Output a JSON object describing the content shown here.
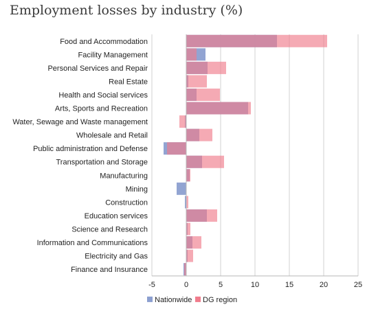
{
  "chart_data": {
    "type": "bar",
    "orientation": "horizontal",
    "title": "Employment losses by industry (%)",
    "xlim": [
      -5,
      25
    ],
    "x_ticks": [
      -5,
      0,
      5,
      10,
      15,
      20,
      25
    ],
    "grid": true,
    "legend_position": "bottom",
    "categories": [
      "Food and Accommodation",
      "Facility Management",
      "Personal Services and Repair",
      "Real Estate",
      "Health and Social services",
      "Arts, Sports and Recreation",
      "Water, Sewage and Waste management",
      "Wholesale and Retail",
      "Public administration and Defense",
      "Transportation and Storage",
      "Manufacturing",
      "Mining",
      "Construction",
      "Education services",
      "Science and Research",
      "Information and Communications",
      "Electricity and Gas",
      "Finance and Insurance"
    ],
    "series": [
      {
        "name": "Nationwide",
        "color": "#8c9fd0",
        "values": [
          13.2,
          2.8,
          3.1,
          0.3,
          1.5,
          9.0,
          -0.2,
          1.9,
          -3.3,
          2.3,
          0.5,
          -1.4,
          -0.2,
          3.0,
          0.2,
          0.9,
          0.2,
          -0.4
        ]
      },
      {
        "name": "DG region",
        "color": "#f07c8c",
        "values": [
          20.5,
          1.5,
          5.8,
          3.0,
          4.9,
          9.4,
          -1.0,
          3.8,
          -2.8,
          5.5,
          0.6,
          0.0,
          0.3,
          4.5,
          0.6,
          2.2,
          1.0,
          -0.3
        ]
      }
    ]
  }
}
